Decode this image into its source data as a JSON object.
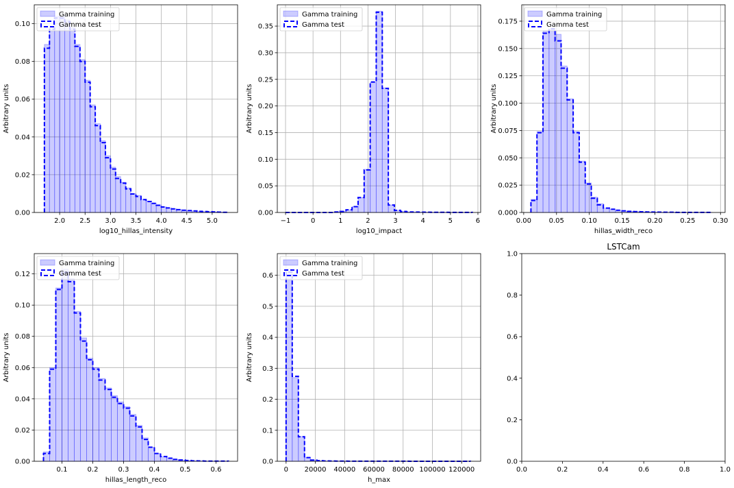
{
  "figure": {
    "background": "#ffffff"
  },
  "chart_data": [
    {
      "type": "histogram",
      "title": "",
      "xlabel": "log10_hillas_intensity",
      "ylabel": "Arbitrary units",
      "xlim": [
        1.5,
        5.5
      ],
      "ylim": [
        0,
        0.11
      ],
      "xticks": [
        2.0,
        2.5,
        3.0,
        3.5,
        4.0,
        4.5,
        5.0
      ],
      "xtick_labels": [
        "2.0",
        "2.5",
        "3.0",
        "3.5",
        "4.0",
        "4.5",
        "5.0"
      ],
      "yticks": [
        0,
        0.02,
        0.04,
        0.06,
        0.08,
        0.1
      ],
      "ytick_labels": [
        "0.00",
        "0.02",
        "0.04",
        "0.06",
        "0.08",
        "0.10"
      ],
      "grid": true,
      "legend": {
        "position": "upper left",
        "entries": [
          "Gamma training",
          "Gamma test"
        ]
      },
      "bin_edges": [
        1.7,
        1.8,
        1.9,
        2.0,
        2.1,
        2.2,
        2.3,
        2.4,
        2.5,
        2.6,
        2.7,
        2.8,
        2.9,
        3.0,
        3.1,
        3.2,
        3.3,
        3.4,
        3.5,
        3.6,
        3.7,
        3.8,
        3.9,
        4.0,
        4.1,
        4.2,
        4.3,
        4.4,
        4.5,
        4.6,
        4.7,
        4.8,
        4.9,
        5.0,
        5.1,
        5.2,
        5.3
      ],
      "series": [
        {
          "name": "Gamma training",
          "style": "filled",
          "color": "#0000ff",
          "values": [
            0.089,
            0.098,
            0.104,
            0.104,
            0.102,
            0.098,
            0.089,
            0.081,
            0.07,
            0.057,
            0.047,
            0.038,
            0.03,
            0.024,
            0.019,
            0.016,
            0.013,
            0.01,
            0.009,
            0.007,
            0.006,
            0.005,
            0.004,
            0.003,
            0.0025,
            0.002,
            0.0016,
            0.0013,
            0.001,
            0.0008,
            0.0006,
            0.0005,
            0.0004,
            0.0003,
            0.0002,
            0.0001
          ]
        },
        {
          "name": "Gamma test",
          "style": "dashed-step",
          "color": "#0000ff",
          "values": [
            0.087,
            0.097,
            0.103,
            0.103,
            0.101,
            0.097,
            0.088,
            0.08,
            0.069,
            0.056,
            0.046,
            0.037,
            0.029,
            0.023,
            0.018,
            0.0155,
            0.0125,
            0.0098,
            0.0085,
            0.0068,
            0.0058,
            0.0048,
            0.0038,
            0.0029,
            0.0024,
            0.0019,
            0.0015,
            0.0012,
            0.001,
            0.0008,
            0.0006,
            0.0005,
            0.0004,
            0.0003,
            0.0002,
            0.0001
          ]
        }
      ]
    },
    {
      "type": "histogram",
      "title": "",
      "xlabel": "log10_impact",
      "ylabel": "Arbitrary units",
      "xlim": [
        -1.3,
        6.1
      ],
      "ylim": [
        0,
        0.39
      ],
      "xticks": [
        -1,
        0,
        1,
        2,
        3,
        4,
        5,
        6
      ],
      "xtick_labels": [
        "−1",
        "0",
        "1",
        "2",
        "3",
        "4",
        "5",
        "6"
      ],
      "yticks": [
        0,
        0.05,
        0.1,
        0.15,
        0.2,
        0.25,
        0.3,
        0.35
      ],
      "ytick_labels": [
        "0.00",
        "0.05",
        "0.10",
        "0.15",
        "0.20",
        "0.25",
        "0.30",
        "0.35"
      ],
      "grid": true,
      "legend": {
        "position": "upper left",
        "entries": [
          "Gamma training",
          "Gamma test"
        ]
      },
      "bin_edges": [
        -1.0,
        -0.78,
        -0.56,
        -0.34,
        -0.12,
        0.1,
        0.32,
        0.54,
        0.76,
        0.98,
        1.2,
        1.42,
        1.64,
        1.86,
        2.08,
        2.3,
        2.52,
        2.74,
        2.96,
        3.18,
        3.4,
        3.62,
        3.84,
        4.06,
        4.28,
        4.5,
        4.72,
        4.94,
        5.16,
        5.38,
        5.6,
        5.8
      ],
      "series": [
        {
          "name": "Gamma training",
          "style": "filled",
          "color": "#0000ff",
          "values": [
            0,
            0,
            0,
            0,
            0,
            0,
            0,
            0,
            0.001,
            0.002,
            0.005,
            0.011,
            0.028,
            0.081,
            0.244,
            0.378,
            0.234,
            0.014,
            0.004,
            0.002,
            0.001,
            0.0008,
            0.0006,
            0.0005,
            0.0004,
            0.0003,
            0.0003,
            0.0002,
            0.0002,
            0.0001,
            0.0001
          ]
        },
        {
          "name": "Gamma test",
          "style": "dashed-step",
          "color": "#0000ff",
          "values": [
            0,
            0,
            0,
            0,
            0,
            0,
            0,
            0,
            0.001,
            0.002,
            0.005,
            0.011,
            0.028,
            0.08,
            0.245,
            0.376,
            0.233,
            0.014,
            0.004,
            0.002,
            0.001,
            0.0008,
            0.0006,
            0.0005,
            0.0004,
            0.0003,
            0.0003,
            0.0002,
            0.0002,
            0.0001,
            0.0001
          ]
        }
      ]
    },
    {
      "type": "histogram",
      "title": "",
      "xlabel": "hillas_width_reco",
      "ylabel": "Arbitrary units",
      "xlim": [
        -0.003,
        0.307
      ],
      "ylim": [
        0,
        0.19
      ],
      "xticks": [
        0.0,
        0.05,
        0.1,
        0.15,
        0.2,
        0.25,
        0.3
      ],
      "xtick_labels": [
        "0.00",
        "0.05",
        "0.10",
        "0.15",
        "0.20",
        "0.25",
        "0.30"
      ],
      "yticks": [
        0,
        0.025,
        0.05,
        0.075,
        0.1,
        0.125,
        0.15,
        0.175
      ],
      "ytick_labels": [
        "0.000",
        "0.025",
        "0.050",
        "0.075",
        "0.100",
        "0.125",
        "0.150",
        "0.175"
      ],
      "grid": true,
      "legend": {
        "position": "upper left",
        "entries": [
          "Gamma training",
          "Gamma test"
        ]
      },
      "bin_edges": [
        0.011,
        0.0202,
        0.0294,
        0.0386,
        0.0478,
        0.057,
        0.0662,
        0.0754,
        0.0846,
        0.0938,
        0.103,
        0.1122,
        0.1214,
        0.1306,
        0.1398,
        0.149,
        0.1582,
        0.1674,
        0.1766,
        0.1858,
        0.195,
        0.2042,
        0.2134,
        0.2226,
        0.2318,
        0.241,
        0.2502,
        0.2594,
        0.2686,
        0.2778,
        0.287
      ],
      "series": [
        {
          "name": "Gamma training",
          "style": "filled",
          "color": "#0000ff",
          "values": [
            0.012,
            0.074,
            0.166,
            0.167,
            0.163,
            0.134,
            0.104,
            0.074,
            0.047,
            0.027,
            0.014,
            0.008,
            0.004,
            0.003,
            0.002,
            0.0015,
            0.001,
            0.0008,
            0.0006,
            0.0005,
            0.0004,
            0.0003,
            0.0002,
            0.0002,
            0.0001,
            0.0001,
            0.0001,
            0.0001,
            0.0001,
            0.0001
          ]
        },
        {
          "name": "Gamma test",
          "style": "dashed-step",
          "color": "#0000ff",
          "values": [
            0.011,
            0.073,
            0.164,
            0.168,
            0.157,
            0.132,
            0.103,
            0.073,
            0.046,
            0.026,
            0.013,
            0.007,
            0.004,
            0.003,
            0.002,
            0.0015,
            0.001,
            0.0008,
            0.0006,
            0.0005,
            0.0004,
            0.0003,
            0.0002,
            0.0002,
            0.0001,
            0.0001,
            0.0001,
            0.0001,
            0.0001,
            0.0001
          ]
        }
      ]
    },
    {
      "type": "histogram",
      "title": "",
      "xlabel": "hillas_length_reco",
      "ylabel": "Arbitrary units",
      "xlim": [
        0.01,
        0.67
      ],
      "ylim": [
        0,
        0.133
      ],
      "xticks": [
        0.1,
        0.2,
        0.3,
        0.4,
        0.5,
        0.6
      ],
      "xtick_labels": [
        "0.1",
        "0.2",
        "0.3",
        "0.4",
        "0.5",
        "0.6"
      ],
      "yticks": [
        0,
        0.02,
        0.04,
        0.06,
        0.08,
        0.1,
        0.12
      ],
      "ytick_labels": [
        "0.00",
        "0.02",
        "0.04",
        "0.06",
        "0.08",
        "0.10",
        "0.12"
      ],
      "grid": true,
      "legend": {
        "position": "upper left",
        "entries": [
          "Gamma training",
          "Gamma test"
        ]
      },
      "bin_edges": [
        0.04,
        0.06,
        0.08,
        0.1,
        0.12,
        0.14,
        0.16,
        0.18,
        0.2,
        0.22,
        0.24,
        0.26,
        0.28,
        0.3,
        0.32,
        0.34,
        0.36,
        0.38,
        0.4,
        0.42,
        0.44,
        0.46,
        0.48,
        0.5,
        0.52,
        0.54,
        0.56,
        0.58,
        0.6,
        0.62,
        0.64
      ],
      "series": [
        {
          "name": "Gamma training",
          "style": "filled",
          "color": "#0000ff",
          "values": [
            0.006,
            0.06,
            0.111,
            0.123,
            0.117,
            0.096,
            0.079,
            0.066,
            0.06,
            0.053,
            0.047,
            0.042,
            0.038,
            0.035,
            0.03,
            0.023,
            0.015,
            0.009,
            0.005,
            0.003,
            0.002,
            0.0012,
            0.0008,
            0.0005,
            0.0003,
            0.0002,
            0.0001,
            0.0001,
            0.0001,
            0.0001
          ]
        },
        {
          "name": "Gamma test",
          "style": "dashed-step",
          "color": "#0000ff",
          "values": [
            0.005,
            0.059,
            0.11,
            0.121,
            0.115,
            0.095,
            0.077,
            0.065,
            0.059,
            0.052,
            0.046,
            0.041,
            0.037,
            0.034,
            0.029,
            0.022,
            0.014,
            0.009,
            0.005,
            0.003,
            0.002,
            0.0012,
            0.0008,
            0.0005,
            0.0003,
            0.0002,
            0.0001,
            0.0001,
            0.0001,
            0.0001
          ]
        }
      ]
    },
    {
      "type": "histogram",
      "title": "",
      "xlabel": "h_max",
      "ylabel": "Arbitrary units",
      "xlim": [
        -6000,
        133000
      ],
      "ylim": [
        0,
        0.67
      ],
      "xticks": [
        0,
        20000,
        40000,
        60000,
        80000,
        100000,
        120000
      ],
      "xtick_labels": [
        "0",
        "20000",
        "40000",
        "60000",
        "80000",
        "100000",
        "120000"
      ],
      "yticks": [
        0,
        0.1,
        0.2,
        0.3,
        0.4,
        0.5,
        0.6
      ],
      "ytick_labels": [
        "0.0",
        "0.1",
        "0.2",
        "0.3",
        "0.4",
        "0.5",
        "0.6"
      ],
      "grid": true,
      "legend": {
        "position": "upper left",
        "entries": [
          "Gamma training",
          "Gamma test"
        ]
      },
      "bin_edges": [
        0,
        4200,
        8400,
        12600,
        16800,
        21000,
        25200,
        29400,
        33600,
        37800,
        42000,
        46200,
        50400,
        54600,
        58800,
        63000,
        67200,
        71400,
        75600,
        79800,
        84000,
        88200,
        92400,
        96600,
        100800,
        105000,
        109200,
        113400,
        117600,
        121800,
        126000
      ],
      "series": [
        {
          "name": "Gamma training",
          "style": "filled",
          "color": "#0000ff",
          "values": [
            0.62,
            0.27,
            0.08,
            0.012,
            0.004,
            0.002,
            0.001,
            0.0008,
            0.0006,
            0.0005,
            0.0004,
            0.0004,
            0.0003,
            0.0003,
            0.0003,
            0.0002,
            0.0002,
            0.0002,
            0.0002,
            0.0002,
            0.0001,
            0.0001,
            0.0001,
            0.0001,
            0.0001,
            0.0001,
            0.0001,
            0.0001,
            0.0001,
            0.0001
          ]
        },
        {
          "name": "Gamma test",
          "style": "dashed-step",
          "color": "#0000ff",
          "values": [
            0.61,
            0.274,
            0.079,
            0.012,
            0.004,
            0.002,
            0.001,
            0.0008,
            0.0006,
            0.0005,
            0.0004,
            0.0004,
            0.0003,
            0.0003,
            0.0003,
            0.0002,
            0.0002,
            0.0002,
            0.0002,
            0.0002,
            0.0001,
            0.0001,
            0.0001,
            0.0001,
            0.0001,
            0.0001,
            0.0001,
            0.0001,
            0.0001,
            0.0001
          ]
        }
      ]
    },
    {
      "type": "empty",
      "title": "LSTCam",
      "xlabel": "",
      "ylabel": "",
      "xlim": [
        0,
        1
      ],
      "ylim": [
        0,
        1
      ],
      "xticks": [
        0,
        0.2,
        0.4,
        0.6,
        0.8,
        1.0
      ],
      "xtick_labels": [
        "0.0",
        "0.2",
        "0.4",
        "0.6",
        "0.8",
        "1.0"
      ],
      "yticks": [
        0,
        0.2,
        0.4,
        0.6,
        0.8,
        1.0
      ],
      "ytick_labels": [
        "0.0",
        "0.2",
        "0.4",
        "0.6",
        "0.8",
        "1.0"
      ],
      "grid": false
    }
  ]
}
